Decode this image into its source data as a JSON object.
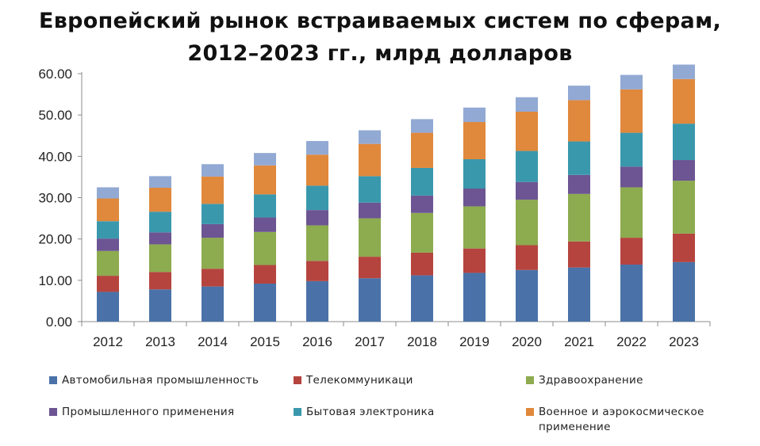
{
  "chart_data": {
    "type": "bar",
    "stacked": true,
    "title_lines": [
      "Европейский рынок встраиваемых систем по сферам,",
      "2012–2023 гг., млрд долларов"
    ],
    "xlabel": "",
    "ylabel": "",
    "categories": [
      "2012",
      "2013",
      "2014",
      "2015",
      "2016",
      "2017",
      "2018",
      "2019",
      "2020",
      "2021",
      "2022",
      "2023"
    ],
    "ylim": [
      0,
      60
    ],
    "yticks": [
      "0.00",
      "10.00",
      "20.00",
      "30.00",
      "40.00",
      "50.00",
      "60.00"
    ],
    "grid": false,
    "legend_position": "bottom",
    "series": [
      {
        "name": "Автомобильная промышленность",
        "color": "#4a72a8",
        "values": [
          7.2,
          7.8,
          8.5,
          9.2,
          9.8,
          10.5,
          11.2,
          11.8,
          12.5,
          13.1,
          13.8,
          14.4
        ]
      },
      {
        "name": "Телекоммуникаци",
        "color": "#b5443f",
        "values": [
          3.9,
          4.2,
          4.3,
          4.5,
          4.9,
          5.2,
          5.5,
          5.9,
          6.0,
          6.3,
          6.5,
          6.9
        ]
      },
      {
        "name": "Здравоохранение",
        "color": "#8dab4f",
        "values": [
          6.0,
          6.7,
          7.5,
          8.0,
          8.6,
          9.3,
          9.6,
          10.2,
          11.0,
          11.5,
          12.2,
          12.8
        ]
      },
      {
        "name": "Промышленного применения",
        "color": "#6c5592",
        "values": [
          3.0,
          2.9,
          3.3,
          3.5,
          3.7,
          3.8,
          4.2,
          4.3,
          4.3,
          4.6,
          5.0,
          5.0
        ]
      },
      {
        "name": "Бытовая электроника",
        "color": "#3a98ad",
        "values": [
          4.2,
          5.0,
          4.9,
          5.6,
          5.9,
          6.4,
          6.7,
          7.1,
          7.5,
          8.1,
          8.2,
          8.8
        ]
      },
      {
        "name": "Военное и аэрокосмическое применение",
        "color": "#e0883c",
        "values": [
          5.5,
          5.8,
          6.6,
          7.0,
          7.5,
          7.8,
          8.5,
          9.0,
          9.5,
          10.0,
          10.5,
          10.8
        ]
      },
      {
        "name": "",
        "color": "#92a9d4",
        "values": [
          2.7,
          2.8,
          3.0,
          3.0,
          3.3,
          3.3,
          3.3,
          3.5,
          3.5,
          3.5,
          3.5,
          3.5
        ]
      }
    ]
  }
}
